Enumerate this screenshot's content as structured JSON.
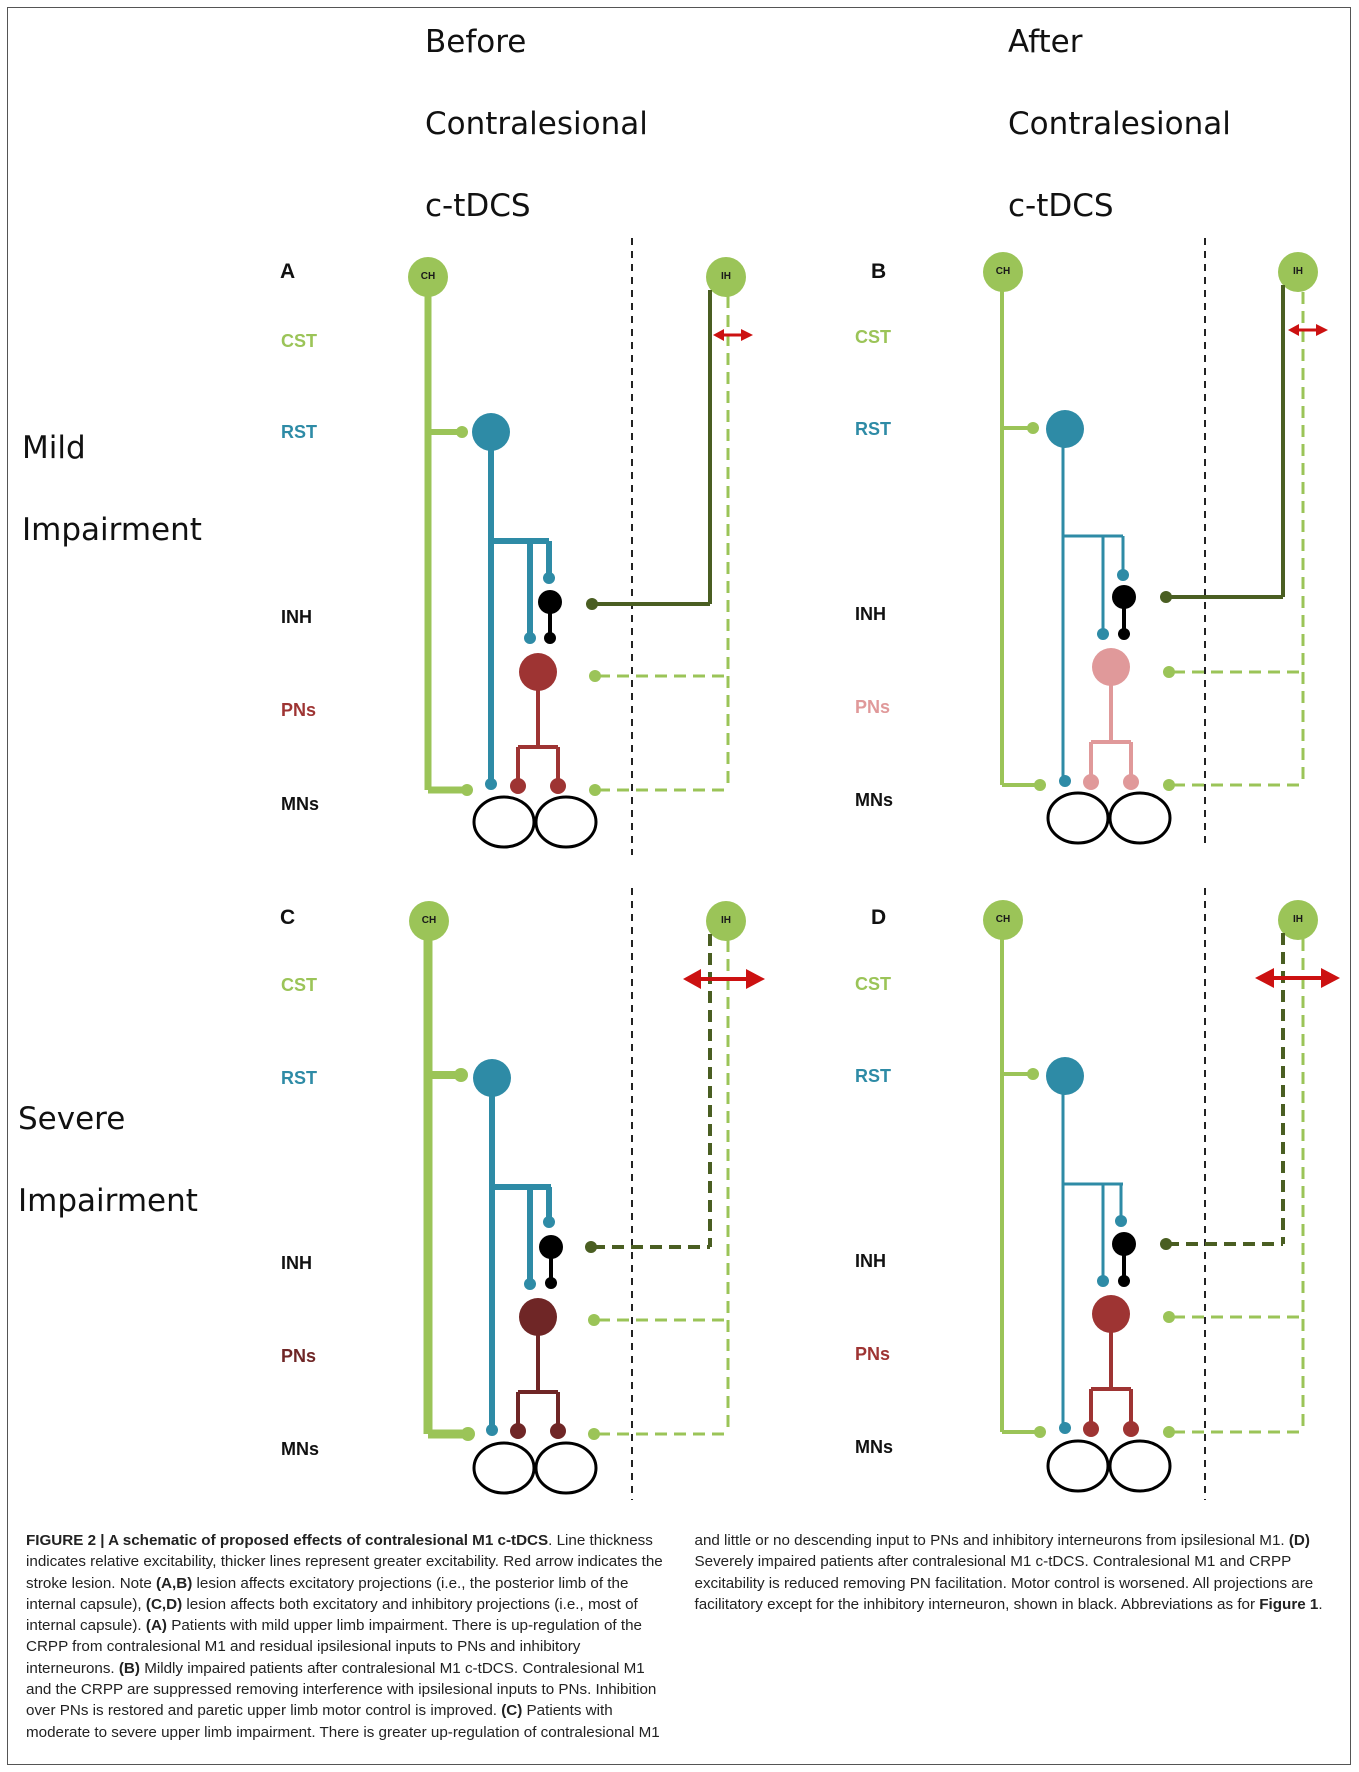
{
  "headers": {
    "before": [
      "Before",
      "Contralesional",
      "c-tDCS"
    ],
    "after": [
      "After",
      "Contralesional",
      "c-tDCS"
    ]
  },
  "rows": {
    "mild": [
      "Mild",
      "Impairment"
    ],
    "severe": [
      "Severe",
      "Impairment"
    ]
  },
  "panels": [
    "A",
    "B",
    "C",
    "D"
  ],
  "nodes": {
    "ch": "CH",
    "ih": "IH"
  },
  "labels": {
    "cst": "CST",
    "rst": "RST",
    "inh": "INH",
    "pns": "PNs",
    "mns": "MNs"
  },
  "colors": {
    "excitatory_green": "#9bc458",
    "ipsilesional_dark_green": "#4a5e22",
    "rst_blue": "#2e8ba6",
    "pn_red": "#9e3433",
    "pn_pink": "#e0999a",
    "pn_dark_red": "#6f2626",
    "inhibitory_black": "#000000",
    "lesion_arrow_red": "#cc1111"
  },
  "caption": {
    "title": "FIGURE 2 | A schematic of proposed effects of contralesional M1 c-tDCS",
    "p1": ". Line thickness indicates relative excitability, thicker lines represent greater excitability. Red arrow indicates the stroke lesion. Note ",
    "ref_ab": "(A,B)",
    "p2": " lesion affects excitatory projections (i.e., the posterior limb of the internal capsule), ",
    "ref_cd": "(C,D)",
    "p3": " lesion affects both excitatory and inhibitory projections (i.e., most of internal capsule). ",
    "ref_a": "(A)",
    "p4": " Patients with mild upper limb impairment. There is up-regulation of the CRPP from contralesional M1 and residual ipsilesional inputs to PNs and inhibitory interneurons. ",
    "ref_b": "(B)",
    "p5": " Mildly impaired patients after contralesional M1 c-tDCS. Contralesional M1 and the CRPP are suppressed removing interference with ipsilesional inputs to PNs. Inhibition over PNs is restored and paretic upper limb motor control is improved. ",
    "ref_c": "(C)",
    "p6": " Patients with moderate to severe upper limb impairment. There is greater up-regulation of contralesional M1 and little or no descending input to PNs and inhibitory interneurons from ipsilesional M1. ",
    "ref_d": "(D)",
    "p7": " Severely impaired patients after contralesional M1 c-tDCS. Contralesional M1 and CRPP excitability is reduced removing PN facilitation. Motor control is worsened. All projections are facilitatory except for the inhibitory interneuron, shown in black. Abbreviations as for ",
    "ref_fig": "Figure 1",
    "p8": "."
  }
}
